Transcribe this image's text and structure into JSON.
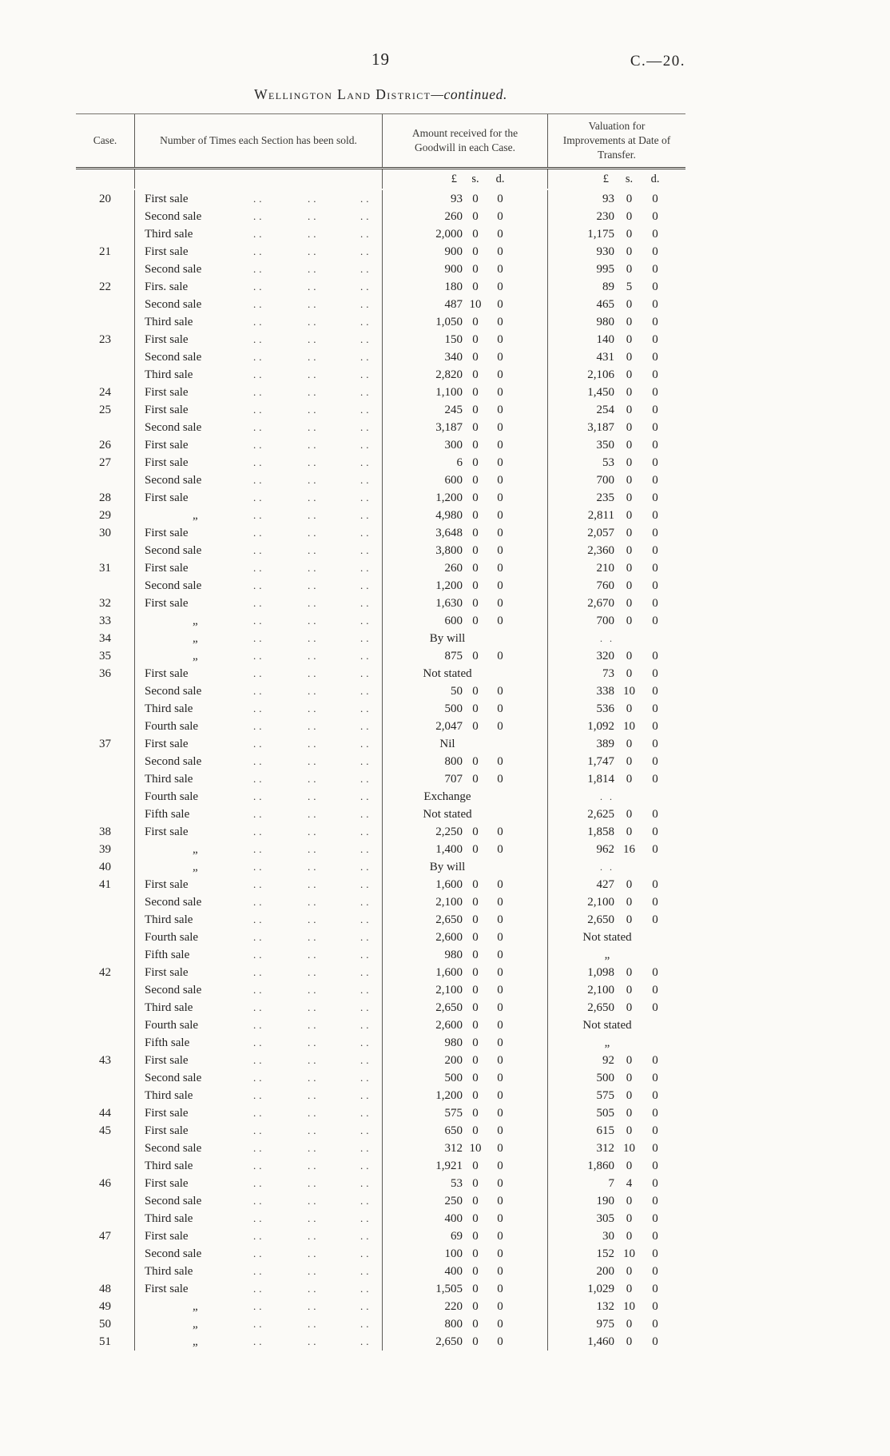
{
  "page": {
    "page_number": "19",
    "doc_ref": "C.—20.",
    "title_main": "Wellington Land District",
    "title_suffix": "—continued."
  },
  "table": {
    "headers": {
      "case": "Case.",
      "times_sold": "Number of Times each Section has been sold.",
      "goodwill": "Amount received for the Goodwill in each Case.",
      "valuation": "Valuation for Improvements at Date of Transfer."
    },
    "currency_headers": {
      "pounds": "£",
      "shillings": "s.",
      "pence": "d."
    },
    "ditto_mark": "„",
    "dots": "..",
    "blank_mark": ". .",
    "rows": [
      {
        "c": "20",
        "s": "First sale",
        "g": [
          "93",
          "0",
          "0"
        ],
        "v": [
          "93",
          "0",
          "0"
        ]
      },
      {
        "c": "",
        "s": "Second sale",
        "g": [
          "260",
          "0",
          "0"
        ],
        "v": [
          "230",
          "0",
          "0"
        ]
      },
      {
        "c": "",
        "s": "Third sale",
        "g": [
          "2,000",
          "0",
          "0"
        ],
        "v": [
          "1,175",
          "0",
          "0"
        ]
      },
      {
        "c": "21",
        "s": "First sale",
        "g": [
          "900",
          "0",
          "0"
        ],
        "v": [
          "930",
          "0",
          "0"
        ]
      },
      {
        "c": "",
        "s": "Second sale",
        "g": [
          "900",
          "0",
          "0"
        ],
        "v": [
          "995",
          "0",
          "0"
        ]
      },
      {
        "c": "22",
        "s": "Firs. sale",
        "g": [
          "180",
          "0",
          "0"
        ],
        "v": [
          "89",
          "5",
          "0"
        ]
      },
      {
        "c": "",
        "s": "Second sale",
        "g": [
          "487",
          "10",
          "0"
        ],
        "v": [
          "465",
          "0",
          "0"
        ]
      },
      {
        "c": "",
        "s": "Third sale",
        "g": [
          "1,050",
          "0",
          "0"
        ],
        "v": [
          "980",
          "0",
          "0"
        ]
      },
      {
        "c": "23",
        "s": "First sale",
        "g": [
          "150",
          "0",
          "0"
        ],
        "v": [
          "140",
          "0",
          "0"
        ]
      },
      {
        "c": "",
        "s": "Second sale",
        "g": [
          "340",
          "0",
          "0"
        ],
        "v": [
          "431",
          "0",
          "0"
        ]
      },
      {
        "c": "",
        "s": "Third sale",
        "g": [
          "2,820",
          "0",
          "0"
        ],
        "v": [
          "2,106",
          "0",
          "0"
        ]
      },
      {
        "c": "24",
        "s": "First sale",
        "g": [
          "1,100",
          "0",
          "0"
        ],
        "v": [
          "1,450",
          "0",
          "0"
        ]
      },
      {
        "c": "25",
        "s": "First sale",
        "g": [
          "245",
          "0",
          "0"
        ],
        "v": [
          "254",
          "0",
          "0"
        ]
      },
      {
        "c": "",
        "s": "Second sale",
        "g": [
          "3,187",
          "0",
          "0"
        ],
        "v": [
          "3,187",
          "0",
          "0"
        ]
      },
      {
        "c": "26",
        "s": "First sale",
        "g": [
          "300",
          "0",
          "0"
        ],
        "v": [
          "350",
          "0",
          "0"
        ]
      },
      {
        "c": "27",
        "s": "First sale",
        "g": [
          "6",
          "0",
          "0"
        ],
        "v": [
          "53",
          "0",
          "0"
        ]
      },
      {
        "c": "",
        "s": "Second sale",
        "g": [
          "600",
          "0",
          "0"
        ],
        "v": [
          "700",
          "0",
          "0"
        ]
      },
      {
        "c": "28",
        "s": "First sale",
        "g": [
          "1,200",
          "0",
          "0"
        ],
        "v": [
          "235",
          "0",
          "0"
        ]
      },
      {
        "c": "29",
        "s": "„",
        "g": [
          "4,980",
          "0",
          "0"
        ],
        "v": [
          "2,811",
          "0",
          "0"
        ]
      },
      {
        "c": "30",
        "s": "First sale",
        "g": [
          "3,648",
          "0",
          "0"
        ],
        "v": [
          "2,057",
          "0",
          "0"
        ]
      },
      {
        "c": "",
        "s": "Second sale",
        "g": [
          "3,800",
          "0",
          "0"
        ],
        "v": [
          "2,360",
          "0",
          "0"
        ]
      },
      {
        "c": "31",
        "s": "First sale",
        "g": [
          "260",
          "0",
          "0"
        ],
        "v": [
          "210",
          "0",
          "0"
        ]
      },
      {
        "c": "",
        "s": "Second sale",
        "g": [
          "1,200",
          "0",
          "0"
        ],
        "v": [
          "760",
          "0",
          "0"
        ]
      },
      {
        "c": "32",
        "s": "First sale",
        "g": [
          "1,630",
          "0",
          "0"
        ],
        "v": [
          "2,670",
          "0",
          "0"
        ]
      },
      {
        "c": "33",
        "s": "„",
        "g": [
          "600",
          "0",
          "0"
        ],
        "v": [
          "700",
          "0",
          "0"
        ]
      },
      {
        "c": "34",
        "s": "„",
        "gt": "By will",
        "vt": ". ."
      },
      {
        "c": "35",
        "s": "„",
        "g": [
          "875",
          "0",
          "0"
        ],
        "v": [
          "320",
          "0",
          "0"
        ]
      },
      {
        "c": "36",
        "s": "First sale",
        "gt": "Not stated",
        "v": [
          "73",
          "0",
          "0"
        ]
      },
      {
        "c": "",
        "s": "Second sale",
        "g": [
          "50",
          "0",
          "0"
        ],
        "v": [
          "338",
          "10",
          "0"
        ]
      },
      {
        "c": "",
        "s": "Third sale",
        "g": [
          "500",
          "0",
          "0"
        ],
        "v": [
          "536",
          "0",
          "0"
        ]
      },
      {
        "c": "",
        "s": "Fourth sale",
        "g": [
          "2,047",
          "0",
          "0"
        ],
        "v": [
          "1,092",
          "10",
          "0"
        ]
      },
      {
        "c": "37",
        "s": "First sale",
        "gt": "Nil",
        "v": [
          "389",
          "0",
          "0"
        ]
      },
      {
        "c": "",
        "s": "Second sale",
        "g": [
          "800",
          "0",
          "0"
        ],
        "v": [
          "1,747",
          "0",
          "0"
        ]
      },
      {
        "c": "",
        "s": "Third sale",
        "g": [
          "707",
          "0",
          "0"
        ],
        "v": [
          "1,814",
          "0",
          "0"
        ]
      },
      {
        "c": "",
        "s": "Fourth sale",
        "gt": "Exchange",
        "vt": ". ."
      },
      {
        "c": "",
        "s": "Fifth sale",
        "gt": "Not stated",
        "v": [
          "2,625",
          "0",
          "0"
        ]
      },
      {
        "c": "38",
        "s": "First sale",
        "g": [
          "2,250",
          "0",
          "0"
        ],
        "v": [
          "1,858",
          "0",
          "0"
        ]
      },
      {
        "c": "39",
        "s": "„",
        "g": [
          "1,400",
          "0",
          "0"
        ],
        "v": [
          "962",
          "16",
          "0"
        ]
      },
      {
        "c": "40",
        "s": "„",
        "gt": "By will",
        "vt": ". ."
      },
      {
        "c": "41",
        "s": "First sale",
        "g": [
          "1,600",
          "0",
          "0"
        ],
        "v": [
          "427",
          "0",
          "0"
        ]
      },
      {
        "c": "",
        "s": "Second sale",
        "g": [
          "2,100",
          "0",
          "0"
        ],
        "v": [
          "2,100",
          "0",
          "0"
        ]
      },
      {
        "c": "",
        "s": "Third sale",
        "g": [
          "2,650",
          "0",
          "0"
        ],
        "v": [
          "2,650",
          "0",
          "0"
        ]
      },
      {
        "c": "",
        "s": "Fourth sale",
        "g": [
          "2,600",
          "0",
          "0"
        ],
        "vt": "Not stated"
      },
      {
        "c": "",
        "s": "Fifth sale",
        "g": [
          "980",
          "0",
          "0"
        ],
        "vt": "„"
      },
      {
        "c": "42",
        "s": "First sale",
        "g": [
          "1,600",
          "0",
          "0"
        ],
        "v": [
          "1,098",
          "0",
          "0"
        ]
      },
      {
        "c": "",
        "s": "Second sale",
        "g": [
          "2,100",
          "0",
          "0"
        ],
        "v": [
          "2,100",
          "0",
          "0"
        ]
      },
      {
        "c": "",
        "s": "Third sale",
        "g": [
          "2,650",
          "0",
          "0"
        ],
        "v": [
          "2,650",
          "0",
          "0"
        ]
      },
      {
        "c": "",
        "s": "Fourth sale",
        "g": [
          "2,600",
          "0",
          "0"
        ],
        "vt": "Not stated"
      },
      {
        "c": "",
        "s": "Fifth sale",
        "g": [
          "980",
          "0",
          "0"
        ],
        "vt": "„"
      },
      {
        "c": "43",
        "s": "First sale",
        "g": [
          "200",
          "0",
          "0"
        ],
        "v": [
          "92",
          "0",
          "0"
        ]
      },
      {
        "c": "",
        "s": "Second sale",
        "g": [
          "500",
          "0",
          "0"
        ],
        "v": [
          "500",
          "0",
          "0"
        ]
      },
      {
        "c": "",
        "s": "Third sale",
        "g": [
          "1,200",
          "0",
          "0"
        ],
        "v": [
          "575",
          "0",
          "0"
        ]
      },
      {
        "c": "44",
        "s": "First sale",
        "g": [
          "575",
          "0",
          "0"
        ],
        "v": [
          "505",
          "0",
          "0"
        ]
      },
      {
        "c": "45",
        "s": "First sale",
        "g": [
          "650",
          "0",
          "0"
        ],
        "v": [
          "615",
          "0",
          "0"
        ]
      },
      {
        "c": "",
        "s": "Second sale",
        "g": [
          "312",
          "10",
          "0"
        ],
        "v": [
          "312",
          "10",
          "0"
        ]
      },
      {
        "c": "",
        "s": "Third sale",
        "g": [
          "1,921",
          "0",
          "0"
        ],
        "v": [
          "1,860",
          "0",
          "0"
        ]
      },
      {
        "c": "46",
        "s": "First sale",
        "g": [
          "53",
          "0",
          "0"
        ],
        "v": [
          "7",
          "4",
          "0"
        ]
      },
      {
        "c": "",
        "s": "Second sale",
        "g": [
          "250",
          "0",
          "0"
        ],
        "v": [
          "190",
          "0",
          "0"
        ]
      },
      {
        "c": "",
        "s": "Third sale",
        "g": [
          "400",
          "0",
          "0"
        ],
        "v": [
          "305",
          "0",
          "0"
        ]
      },
      {
        "c": "47",
        "s": "First sale",
        "g": [
          "69",
          "0",
          "0"
        ],
        "v": [
          "30",
          "0",
          "0"
        ]
      },
      {
        "c": "",
        "s": "Second sale",
        "g": [
          "100",
          "0",
          "0"
        ],
        "v": [
          "152",
          "10",
          "0"
        ]
      },
      {
        "c": "",
        "s": "Third sale",
        "g": [
          "400",
          "0",
          "0"
        ],
        "v": [
          "200",
          "0",
          "0"
        ]
      },
      {
        "c": "48",
        "s": "First sale",
        "g": [
          "1,505",
          "0",
          "0"
        ],
        "v": [
          "1,029",
          "0",
          "0"
        ]
      },
      {
        "c": "49",
        "s": "„",
        "g": [
          "220",
          "0",
          "0"
        ],
        "v": [
          "132",
          "10",
          "0"
        ]
      },
      {
        "c": "50",
        "s": "„",
        "g": [
          "800",
          "0",
          "0"
        ],
        "v": [
          "975",
          "0",
          "0"
        ]
      },
      {
        "c": "51",
        "s": "„",
        "g": [
          "2,650",
          "0",
          "0"
        ],
        "v": [
          "1,460",
          "0",
          "0"
        ]
      }
    ]
  }
}
